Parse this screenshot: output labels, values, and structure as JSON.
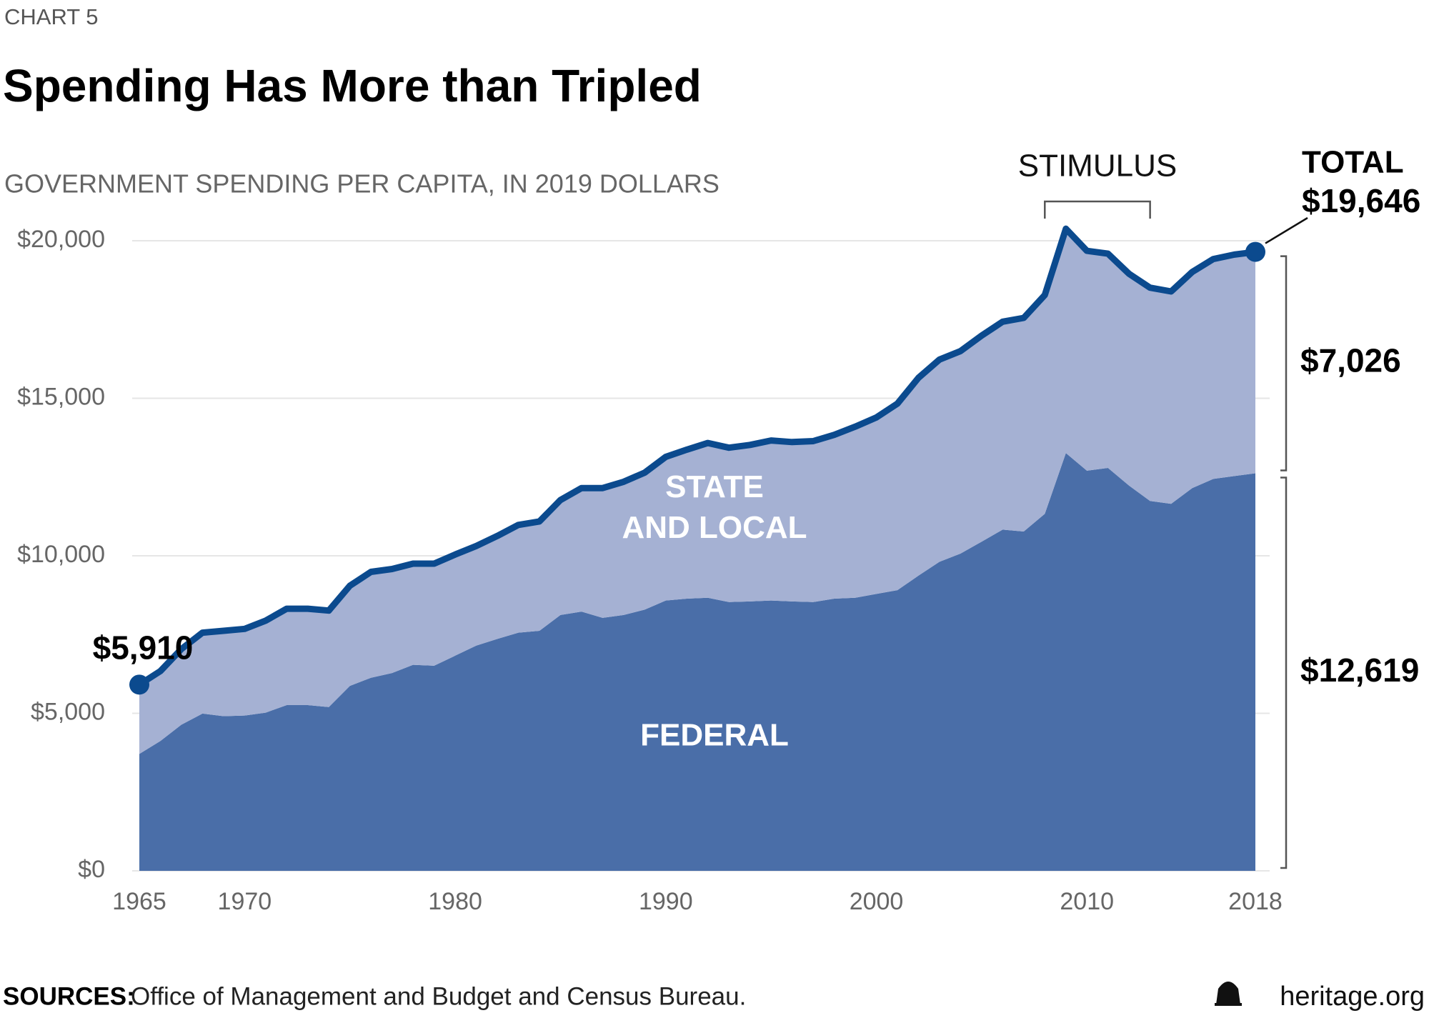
{
  "chart_data": {
    "type": "stacked-area",
    "kicker": "CHART 5",
    "title": "Spending Has More than Tripled",
    "subtitle": "GOVERNMENT SPENDING PER CAPITA, IN 2019 DOLLARS",
    "x": [
      1965,
      1966,
      1967,
      1968,
      1969,
      1970,
      1971,
      1972,
      1973,
      1974,
      1975,
      1976,
      1977,
      1978,
      1979,
      1980,
      1981,
      1982,
      1983,
      1984,
      1985,
      1986,
      1987,
      1988,
      1989,
      1990,
      1991,
      1992,
      1993,
      1994,
      1995,
      1996,
      1997,
      1998,
      1999,
      2000,
      2001,
      2002,
      2003,
      2004,
      2005,
      2006,
      2007,
      2008,
      2009,
      2010,
      2011,
      2012,
      2013,
      2014,
      2015,
      2016,
      2017,
      2018
    ],
    "series": [
      {
        "name": "FEDERAL",
        "color": "#4a6ea8",
        "values": [
          3710,
          4120,
          4640,
          4990,
          4910,
          4930,
          5020,
          5260,
          5260,
          5200,
          5870,
          6130,
          6280,
          6540,
          6510,
          6830,
          7150,
          7360,
          7560,
          7620,
          8120,
          8230,
          8030,
          8120,
          8290,
          8580,
          8640,
          8670,
          8530,
          8550,
          8580,
          8550,
          8530,
          8640,
          8670,
          8790,
          8910,
          9370,
          9810,
          10070,
          10450,
          10830,
          10770,
          11330,
          13260,
          12700,
          12790,
          12230,
          11740,
          11650,
          12150,
          12440,
          12530,
          12619
        ]
      },
      {
        "name": "STATE AND LOCAL",
        "color": "#a5b1d3",
        "values": [
          2200,
          2220,
          2400,
          2570,
          2710,
          2750,
          2920,
          3060,
          3060,
          3060,
          3180,
          3360,
          3300,
          3210,
          3240,
          3210,
          3160,
          3270,
          3420,
          3470,
          3650,
          3920,
          4120,
          4230,
          4350,
          4560,
          4730,
          4910,
          4900,
          4970,
          5080,
          5060,
          5110,
          5200,
          5430,
          5600,
          5920,
          6280,
          6420,
          6430,
          6540,
          6600,
          6780,
          6950,
          7120,
          6980,
          6800,
          6720,
          6770,
          6740,
          6860,
          6980,
          7030,
          7026
        ]
      }
    ],
    "total_color": "#0b4a8e",
    "annotations": [
      {
        "x": 1965,
        "value": 5910,
        "label": "$5,910"
      },
      {
        "x": 2018,
        "value": 19646,
        "label": "$19,646",
        "heading": "TOTAL"
      }
    ],
    "end_labels": [
      {
        "value": 12619,
        "label": "$12,619"
      },
      {
        "value": 7026,
        "label": "$7,026"
      }
    ],
    "stimulus": {
      "label": "STIMULUS",
      "x": [
        2008,
        2013
      ]
    },
    "xlim": [
      1965,
      2018
    ],
    "xticks": [
      1965,
      1970,
      1980,
      1990,
      2000,
      2010,
      2018
    ],
    "ylim": [
      0,
      20000
    ],
    "yticks": [
      {
        "value": 0,
        "label": "$0"
      },
      {
        "value": 5000,
        "label": "$5,000"
      },
      {
        "value": 10000,
        "label": "$10,000"
      },
      {
        "value": 15000,
        "label": "$15,000"
      },
      {
        "value": 20000,
        "label": "$20,000"
      }
    ],
    "grid": true,
    "sources_label": "SOURCES:",
    "sources": "Office of Management and Budget and Census Bureau.",
    "brand": "heritage.org"
  }
}
